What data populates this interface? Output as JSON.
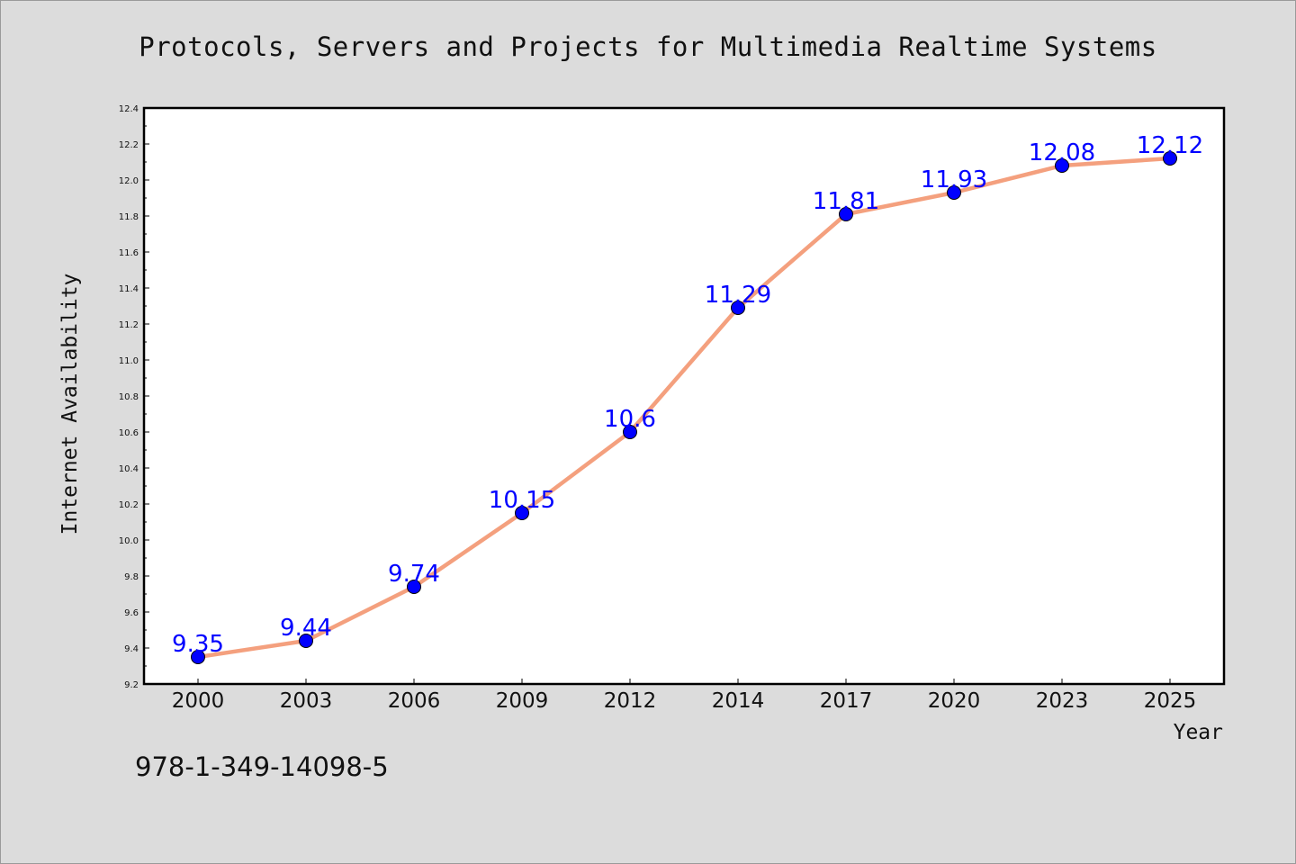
{
  "chart_data": {
    "type": "line",
    "title": "Protocols, Servers and Projects for Multimedia Realtime Systems",
    "xlabel": "Year",
    "ylabel": "Internet Availability",
    "categories": [
      "2000",
      "2003",
      "2006",
      "2009",
      "2012",
      "2014",
      "2017",
      "2020",
      "2023",
      "2025"
    ],
    "series": [
      {
        "values": [
          9.35,
          9.44,
          9.74,
          10.15,
          10.6,
          11.29,
          11.81,
          11.93,
          12.08,
          12.12
        ],
        "data_labels": [
          "9.35",
          "9.44",
          "9.74",
          "10.15",
          "10.6",
          "11.29",
          "11.81",
          "11.93",
          "12.08",
          "12.12"
        ]
      }
    ],
    "ylim": [
      9.2,
      12.4
    ],
    "yticks": [
      "9.2",
      "9.4",
      "9.6",
      "9.8",
      "10.0",
      "10.2",
      "10.4",
      "10.6",
      "10.8",
      "11.0",
      "11.2",
      "11.4",
      "11.6",
      "11.8",
      "12.0",
      "12.2",
      "12.4"
    ],
    "grid": false,
    "legend": "none"
  },
  "footer": {
    "isbn": "978-1-349-14098-5"
  },
  "colors": {
    "background": "#dcdcdc",
    "plot_area": "#ffffff",
    "line": "#f4a07e",
    "marker": "#0000ff",
    "data_label": "#0000ff",
    "text": "#111111"
  }
}
